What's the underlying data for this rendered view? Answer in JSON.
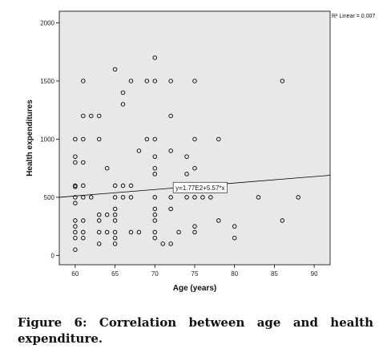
{
  "caption": "Figure 6: Correlation between age and health expenditure.",
  "chart_data": {
    "type": "scatter",
    "title": "",
    "xlabel": "Age (years)",
    "ylabel": "Health expenditures",
    "xlim": [
      58,
      92
    ],
    "ylim": [
      -80,
      2100
    ],
    "xticks": [
      60,
      65,
      70,
      75,
      80,
      85,
      90
    ],
    "yticks": [
      0,
      500,
      1000,
      1500,
      2000
    ],
    "fit_line": {
      "label": "y=1.77E2+5.57*x",
      "intercept": 177,
      "slope": 5.57,
      "r2_label": "R² Linear = 0.007"
    },
    "grid": false,
    "background_color": "#e8e8e8",
    "marker_color": "#000000",
    "points": [
      [
        60,
        1000
      ],
      [
        60,
        850
      ],
      [
        60,
        800
      ],
      [
        60,
        600
      ],
      [
        60,
        590
      ],
      [
        60,
        500
      ],
      [
        60,
        450
      ],
      [
        60,
        300
      ],
      [
        60,
        250
      ],
      [
        60,
        200
      ],
      [
        60,
        150
      ],
      [
        60,
        50
      ],
      [
        61,
        1500
      ],
      [
        61,
        1200
      ],
      [
        61,
        1000
      ],
      [
        61,
        800
      ],
      [
        61,
        600
      ],
      [
        61,
        500
      ],
      [
        61,
        300
      ],
      [
        61,
        200
      ],
      [
        61,
        150
      ],
      [
        62,
        1200
      ],
      [
        62,
        500
      ],
      [
        63,
        1200
      ],
      [
        63,
        1000
      ],
      [
        63,
        350
      ],
      [
        63,
        300
      ],
      [
        63,
        200
      ],
      [
        63,
        100
      ],
      [
        64,
        750
      ],
      [
        64,
        350
      ],
      [
        64,
        200
      ],
      [
        65,
        1600
      ],
      [
        65,
        600
      ],
      [
        65,
        500
      ],
      [
        65,
        400
      ],
      [
        65,
        350
      ],
      [
        65,
        300
      ],
      [
        65,
        200
      ],
      [
        65,
        150
      ],
      [
        65,
        100
      ],
      [
        66,
        1400
      ],
      [
        66,
        1300
      ],
      [
        66,
        600
      ],
      [
        66,
        500
      ],
      [
        67,
        1500
      ],
      [
        67,
        600
      ],
      [
        67,
        500
      ],
      [
        67,
        200
      ],
      [
        68,
        900
      ],
      [
        68,
        200
      ],
      [
        69,
        1500
      ],
      [
        69,
        1000
      ],
      [
        70,
        1700
      ],
      [
        70,
        1500
      ],
      [
        70,
        1000
      ],
      [
        70,
        850
      ],
      [
        70,
        750
      ],
      [
        70,
        700
      ],
      [
        70,
        500
      ],
      [
        70,
        400
      ],
      [
        70,
        350
      ],
      [
        70,
        300
      ],
      [
        70,
        200
      ],
      [
        70,
        150
      ],
      [
        71,
        100
      ],
      [
        72,
        1500
      ],
      [
        72,
        1200
      ],
      [
        72,
        900
      ],
      [
        72,
        500
      ],
      [
        72,
        400
      ],
      [
        72,
        100
      ],
      [
        73,
        600
      ],
      [
        73,
        200
      ],
      [
        74,
        850
      ],
      [
        74,
        700
      ],
      [
        74,
        600
      ],
      [
        74,
        500
      ],
      [
        75,
        1500
      ],
      [
        75,
        1000
      ],
      [
        75,
        750
      ],
      [
        75,
        500
      ],
      [
        75,
        250
      ],
      [
        75,
        200
      ],
      [
        76,
        500
      ],
      [
        77,
        500
      ],
      [
        78,
        1000
      ],
      [
        78,
        300
      ],
      [
        80,
        250
      ],
      [
        80,
        150
      ],
      [
        83,
        500
      ],
      [
        86,
        1500
      ],
      [
        86,
        300
      ],
      [
        88,
        500
      ]
    ]
  }
}
